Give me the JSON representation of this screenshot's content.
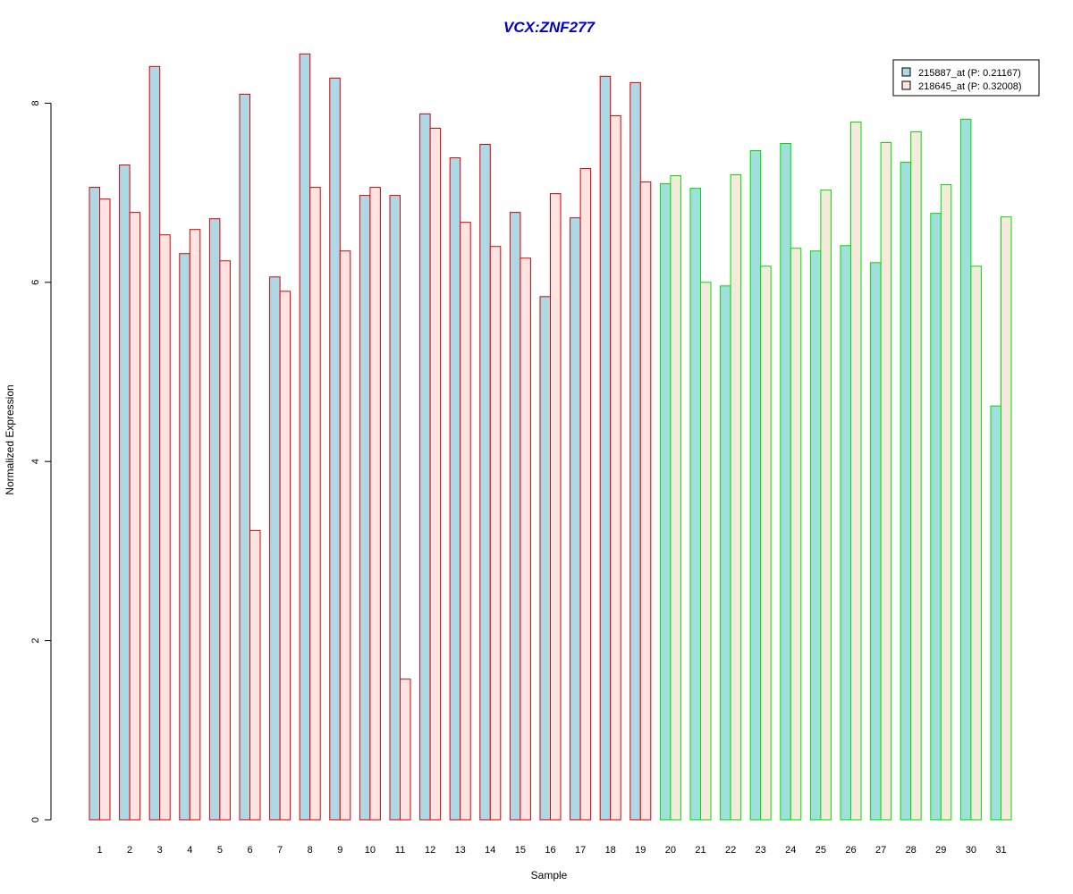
{
  "chart_data": {
    "type": "bar",
    "title": "VCX:ZNF277",
    "xlabel": "Sample",
    "ylabel": "Normalized Expression",
    "ylim": [
      0,
      8.6
    ],
    "yticks": [
      0,
      2,
      4,
      6,
      8
    ],
    "grid": false,
    "legend_position": "top-right",
    "categories": [
      "1",
      "2",
      "3",
      "4",
      "5",
      "6",
      "7",
      "8",
      "9",
      "10",
      "11",
      "12",
      "13",
      "14",
      "15",
      "16",
      "17",
      "18",
      "19",
      "20",
      "21",
      "22",
      "23",
      "24",
      "25",
      "26",
      "27",
      "28",
      "29",
      "30",
      "31"
    ],
    "series": [
      {
        "name": "215887_at (P: 0.21167)",
        "values": [
          7.06,
          7.31,
          8.41,
          6.32,
          6.71,
          8.1,
          6.06,
          8.55,
          8.28,
          6.97,
          6.97,
          7.88,
          7.39,
          7.54,
          6.78,
          5.84,
          6.72,
          8.3,
          8.23,
          7.1,
          7.05,
          5.96,
          7.47,
          7.55,
          6.35,
          6.41,
          6.22,
          7.34,
          6.77,
          7.82,
          4.62
        ]
      },
      {
        "name": "218645_at (P: 0.32008)",
        "values": [
          6.93,
          6.78,
          6.53,
          6.59,
          6.24,
          3.23,
          5.9,
          7.06,
          6.35,
          7.06,
          1.57,
          7.72,
          6.67,
          6.4,
          6.27,
          6.99,
          7.27,
          7.86,
          7.12,
          7.19,
          6.0,
          7.2,
          6.18,
          6.38,
          7.03,
          7.79,
          7.56,
          7.68,
          7.09,
          6.18,
          6.73
        ]
      }
    ],
    "groups": [
      {
        "samples": "1-19",
        "outline": "#dd0000"
      },
      {
        "samples": "20-31",
        "outline": "#00dd00"
      }
    ],
    "colors": {
      "title": "#0000cc",
      "group1_series1_fill": "#add8e6",
      "group1_series2_fill": "#ffe4e1",
      "group2_series1_fill": "#a0e0dc",
      "group2_series2_fill": "#f5ebdc",
      "legend_series1_fill": "#add8e6",
      "legend_series2_fill": "#ffe4e1"
    },
    "group_split_index": 19
  }
}
